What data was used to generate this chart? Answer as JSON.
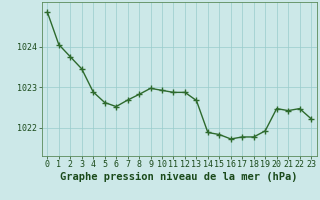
{
  "x": [
    0,
    1,
    2,
    3,
    4,
    5,
    6,
    7,
    8,
    9,
    10,
    11,
    12,
    13,
    14,
    15,
    16,
    17,
    18,
    19,
    20,
    21,
    22,
    23
  ],
  "y": [
    1024.85,
    1024.05,
    1023.75,
    1023.45,
    1022.88,
    1022.62,
    1022.52,
    1022.68,
    1022.82,
    1022.97,
    1022.92,
    1022.87,
    1022.87,
    1022.67,
    1021.88,
    1021.83,
    1021.72,
    1021.77,
    1021.77,
    1021.92,
    1022.47,
    1022.42,
    1022.47,
    1022.22
  ],
  "line_color": "#2d6a2d",
  "marker": "+",
  "marker_size": 4,
  "line_width": 1.0,
  "background_color": "#cce8e8",
  "grid_color": "#99cccc",
  "xlabel": "Graphe pression niveau de la mer (hPa)",
  "xlabel_fontsize": 7.5,
  "xlabel_color": "#1a4a1a",
  "xlabel_bold": true,
  "ytick_labels": [
    "1022",
    "1023",
    "1024"
  ],
  "ytick_values": [
    1022,
    1023,
    1024
  ],
  "ylim": [
    1021.3,
    1025.1
  ],
  "xlim": [
    -0.5,
    23.5
  ],
  "tick_color": "#1a4a1a",
  "tick_fontsize": 6,
  "spine_color": "#5a8a5a"
}
